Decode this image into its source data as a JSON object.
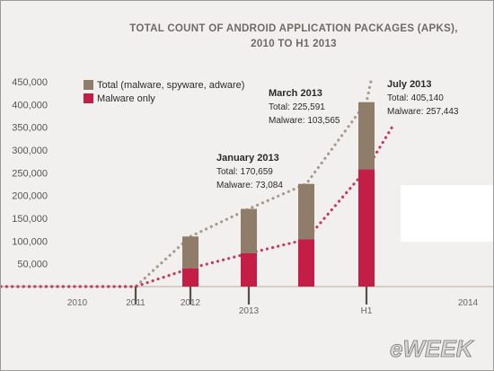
{
  "chart_data": {
    "type": "bar",
    "title": [
      "TOTAL COUNT OF ANDROID APPLICATION PACKAGES (APKS),",
      "2010 TO H1 2013"
    ],
    "ylim": [
      0,
      450000
    ],
    "yticks": [
      50000,
      100000,
      150000,
      200000,
      250000,
      300000,
      350000,
      400000,
      450000
    ],
    "ytick_labels": [
      "50,000",
      "100,000",
      "150,000",
      "200,000",
      "250,000",
      "300,000",
      "350,000",
      "400,000",
      "450,000"
    ],
    "x_labels": [
      {
        "label": "2010",
        "x": 2010
      },
      {
        "label": "2011",
        "x": 2011
      },
      {
        "label": "2012",
        "x": 2012
      },
      {
        "label": "2013",
        "x": 2013
      },
      {
        "label": "H1",
        "x": 2013.5
      },
      {
        "label": "2014",
        "x": 2014
      }
    ],
    "xlim": [
      2009,
      2014.2
    ],
    "series": [
      {
        "name": "Total (malware, spyware, adware)",
        "color": "#8f7d6a",
        "values": [
          {
            "x": 2012.0,
            "y": 110000
          },
          {
            "x": 2013.0,
            "y": 170659
          },
          {
            "x": 2013.25,
            "y": 225591
          },
          {
            "x": 2013.5,
            "y": 405140
          }
        ]
      },
      {
        "name": "Malware only",
        "color": "#c41e46",
        "values": [
          {
            "x": 2012.0,
            "y": 40000
          },
          {
            "x": 2013.0,
            "y": 73084
          },
          {
            "x": 2013.25,
            "y": 103565
          },
          {
            "x": 2013.5,
            "y": 257443
          }
        ]
      }
    ],
    "trend_total": [
      [
        2009.0,
        0
      ],
      [
        2011.0,
        0
      ],
      [
        2012.0,
        110000
      ],
      [
        2013.0,
        170659
      ],
      [
        2013.25,
        225591
      ],
      [
        2013.5,
        405140
      ],
      [
        2013.55,
        460000
      ]
    ],
    "trend_malware": [
      [
        2009.0,
        0
      ],
      [
        2011.0,
        0
      ],
      [
        2012.0,
        40000
      ],
      [
        2013.0,
        73084
      ],
      [
        2013.25,
        103565
      ],
      [
        2013.5,
        257443
      ],
      [
        2013.75,
        355000
      ]
    ],
    "annotations": [
      {
        "heading": "January 2013",
        "lines": [
          "Total: 170,659",
          "Malware: 73,084"
        ]
      },
      {
        "heading": "March 2013",
        "lines": [
          "Total: 225,591",
          "Malware: 103,565"
        ]
      },
      {
        "heading": "July 2013",
        "lines": [
          "Total: 405,140",
          "Malware: 257,443"
        ]
      }
    ],
    "legend": [
      "Total (malware, spyware, adware)",
      "Malware only"
    ],
    "legend_position": "top-left",
    "grid": false
  },
  "logo": {
    "text": "eWEEK"
  }
}
